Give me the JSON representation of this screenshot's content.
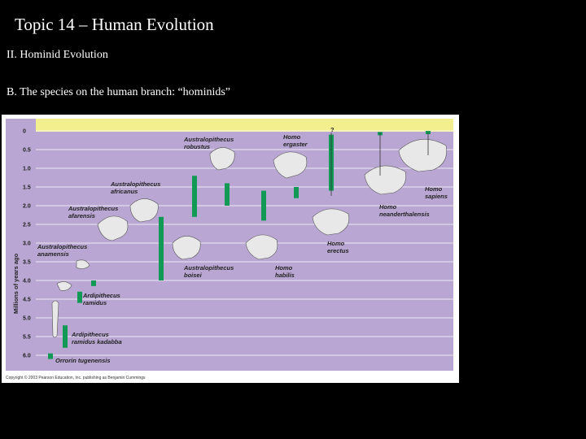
{
  "slide": {
    "title": "Topic 14 – Human Evolution",
    "heading": "II. Hominid Evolution",
    "subheading": "B. The species on the human branch: “hominids”"
  },
  "figure": {
    "axis_label": "Millions of years ago",
    "ticks": [
      "0",
      "0.5",
      "1.0",
      "1.5",
      "2.0",
      "2.5",
      "3.0",
      "3.5",
      "4.0",
      "4.5",
      "5.0",
      "5.5",
      "6.0"
    ],
    "copyright": "Copyright © 2003 Pearson Education, Inc. publishing as Benjamin Cummings",
    "question_mark": "?",
    "colors": {
      "band": "#b9a6d2",
      "top": "#f3ee8e",
      "bar": "#119955"
    },
    "species": [
      {
        "line1": "Ardipithecus",
        "line2": "ramidus kadabba",
        "range": [
          5.2,
          5.8
        ]
      },
      {
        "line1": "Orrorin tugenensis",
        "line2": "",
        "range": [
          5.95,
          6.1
        ]
      },
      {
        "line1": "Ardipithecus",
        "line2": "ramidus",
        "range": [
          4.3,
          4.6
        ]
      },
      {
        "line1": "Australopithecus",
        "line2": "anamensis",
        "range": [
          4.0,
          4.15
        ]
      },
      {
        "line1": "Australopithecus",
        "line2": "afarensis",
        "range": [
          3.0,
          4.0
        ]
      },
      {
        "line1": "Australopithecus",
        "line2": "africanus",
        "range": [
          2.3,
          3.0
        ]
      },
      {
        "line1": "Australopithecus",
        "line2": "boisei",
        "range": [
          1.2,
          2.3
        ]
      },
      {
        "line1": "Australopithecus",
        "line2": "robustus",
        "range": [
          1.4,
          2.0
        ]
      },
      {
        "line1": "Homo",
        "line2": "habilis",
        "range": [
          1.6,
          2.4
        ]
      },
      {
        "line1": "Homo",
        "line2": "ergaster",
        "range": [
          1.5,
          1.8
        ]
      },
      {
        "line1": "Homo",
        "line2": "erectus",
        "range": [
          0.1,
          1.6
        ]
      },
      {
        "line1": "Homo",
        "line2": "neanderthalensis",
        "range": [
          0.03,
          0.05
        ]
      },
      {
        "line1": "Homo",
        "line2": "sapiens",
        "range": [
          0.0,
          0.03
        ]
      }
    ]
  }
}
